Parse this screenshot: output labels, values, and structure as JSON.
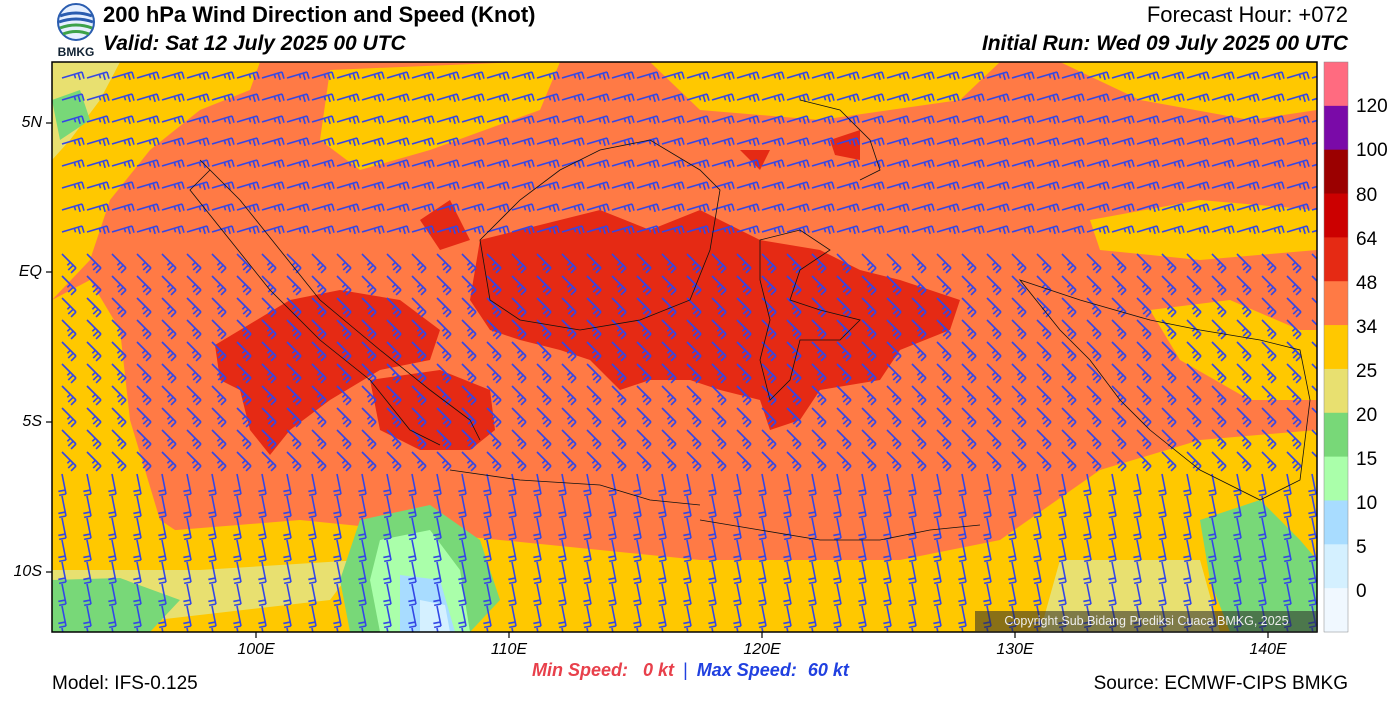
{
  "header": {
    "title": "200 hPa Wind Direction and Speed (Knot)",
    "valid": "Valid: Sat 12 July 2025 00 UTC",
    "forecast_hour": "Forecast Hour: +072",
    "initial_run": "Initial Run: Wed 09 July 2025 00 UTC"
  },
  "logo": {
    "text": "BMKG"
  },
  "map": {
    "lat_labels": [
      "5N",
      "EQ",
      "5S",
      "10S"
    ],
    "lon_labels": [
      "100E",
      "110E",
      "120E",
      "130E",
      "140E"
    ],
    "copyright": "Copyright Sub Bidang Prediksi Cuaca BMKG, 2025"
  },
  "colorbar": {
    "labels": [
      "120",
      "100",
      "80",
      "64",
      "48",
      "34",
      "25",
      "20",
      "15",
      "10",
      "5",
      "0"
    ],
    "colors": [
      "#ff6b80",
      "#7a0aa8",
      "#9b0000",
      "#cc0000",
      "#e52a14",
      "#ff7a45",
      "#ffc800",
      "#e8e070",
      "#78d878",
      "#aaffaa",
      "#a8dcff",
      "#d4f0ff",
      "#f0f8ff"
    ]
  },
  "footer": {
    "model": "Model: IFS-0.125",
    "source": "Source: ECMWF-CIPS BMKG",
    "min_label": "Min Speed:",
    "min_value": "0 kt",
    "separator": "|",
    "max_label": "Max Speed:",
    "max_value": "60 kt"
  },
  "colors": {
    "barb": "#3347e6",
    "coast": "#111111"
  }
}
